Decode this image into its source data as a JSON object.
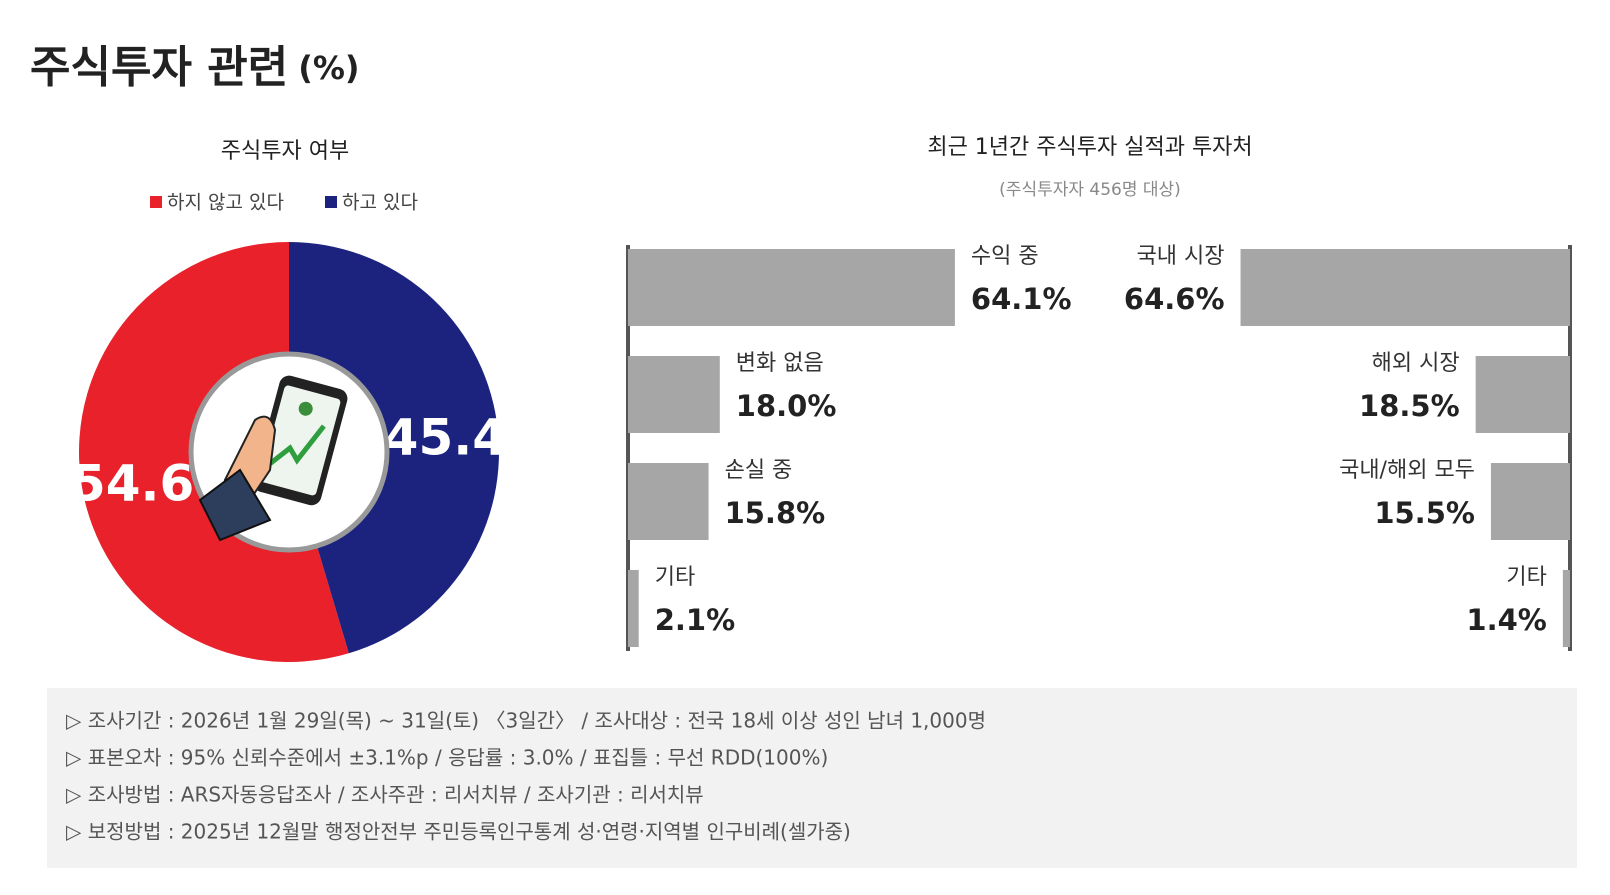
{
  "title": "주식투자 관련",
  "title_unit": "(%)",
  "chart_data": [
    {
      "type": "donut",
      "title": "주식투자 여부",
      "categories": [
        "하지 않고 있다",
        "하고 있다"
      ],
      "values": [
        54.6,
        45.4
      ],
      "colors": [
        "#e8212b",
        "#1b237f"
      ],
      "clockwise": false
    },
    {
      "type": "bar",
      "align": "left",
      "title": "최근 1년간 주식투자 실적과 투자처",
      "subtitle": "(주식투자자 456명 대상)",
      "categories": [
        "수익 중",
        "변화 없음",
        "손실 중",
        "기타"
      ],
      "values": [
        64.1,
        18.0,
        15.8,
        2.1
      ],
      "value_labels": [
        "64.1%",
        "18.0%",
        "15.8%",
        "2.1%"
      ],
      "color": "#a6a6a6"
    },
    {
      "type": "bar",
      "align": "right",
      "categories": [
        "국내 시장",
        "해외 시장",
        "국내/해외 모두",
        "기타"
      ],
      "values": [
        64.6,
        18.5,
        15.5,
        1.4
      ],
      "value_labels": [
        "64.6%",
        "18.5%",
        "15.5%",
        "1.4%"
      ],
      "color": "#a6a6a6"
    }
  ],
  "notes": [
    "▷ 조사기간 : 2026년 1월 29일(목) ~ 31일(토) 〈3일간〉 / 조사대상 : 전국 18세 이상 성인 남녀 1,000명",
    "▷ 표본오차 : 95% 신뢰수준에서 ±3.1%p / 응답률 : 3.0% / 표집틀 : 무선 RDD(100%)",
    "▷ 조사방법 : ARS자동응답조사 / 조사주관 : 리서치뷰 / 조사기관 : 리서치뷰",
    "▷ 보정방법 : 2025년 12월말 행정안전부 주민등록인구통계 성·연령·지역별 인구비례(셀가중)"
  ]
}
